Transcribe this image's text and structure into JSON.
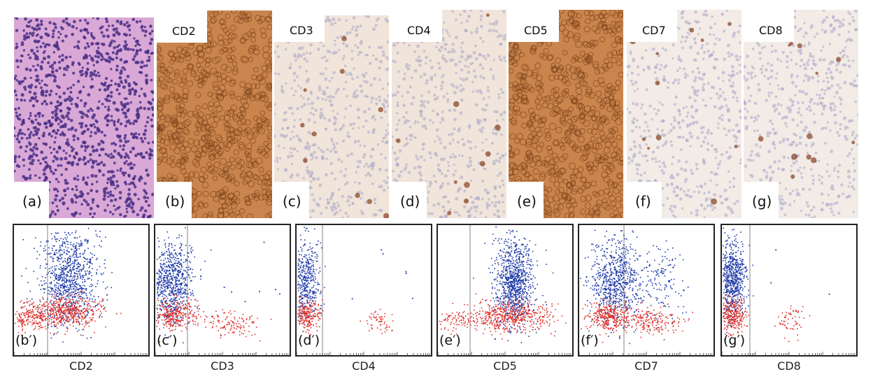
{
  "figure": {
    "histology_panels": [
      {
        "id": "a",
        "label": "(a)",
        "stain": "",
        "stain_kind": "he"
      },
      {
        "id": "b",
        "label": "(b)",
        "stain": "CD2",
        "stain_kind": "strong"
      },
      {
        "id": "c",
        "label": "(c)",
        "stain": "CD3",
        "stain_kind": "weak"
      },
      {
        "id": "d",
        "label": "(d)",
        "stain": "CD4",
        "stain_kind": "weak"
      },
      {
        "id": "e",
        "label": "(e)",
        "stain": "CD5",
        "stain_kind": "strong"
      },
      {
        "id": "f",
        "label": "(f)",
        "stain": "CD7",
        "stain_kind": "sparse"
      },
      {
        "id": "g",
        "label": "(g)",
        "stain": "CD8",
        "stain_kind": "sparse"
      }
    ],
    "flow_panels": [
      {
        "id": "b2",
        "label": "(b′)",
        "marker": "CD2"
      },
      {
        "id": "c2",
        "label": "(c′)",
        "marker": "CD3"
      },
      {
        "id": "d2",
        "label": "(d′)",
        "marker": "CD4"
      },
      {
        "id": "e2",
        "label": "(e′)",
        "marker": "CD5"
      },
      {
        "id": "f2",
        "label": "(f′)",
        "marker": "CD7"
      },
      {
        "id": "g2",
        "label": "(g′)",
        "marker": "CD8"
      }
    ],
    "colors": {
      "he_bg": "#d9a8d6",
      "he_nuclei": "#4a2f86",
      "strong_bg": "#c9854d",
      "strong_dots": "#7a3f18",
      "weak_bg": "#f1e4da",
      "weak_dots": "#a8a7c9",
      "sparse_bg": "#f3ebe6",
      "sparse_marks": "#8b4a2a",
      "flow_blue": "#1f3aa8",
      "flow_red": "#e0302a",
      "gate_line": "#9a9a9a"
    }
  }
}
